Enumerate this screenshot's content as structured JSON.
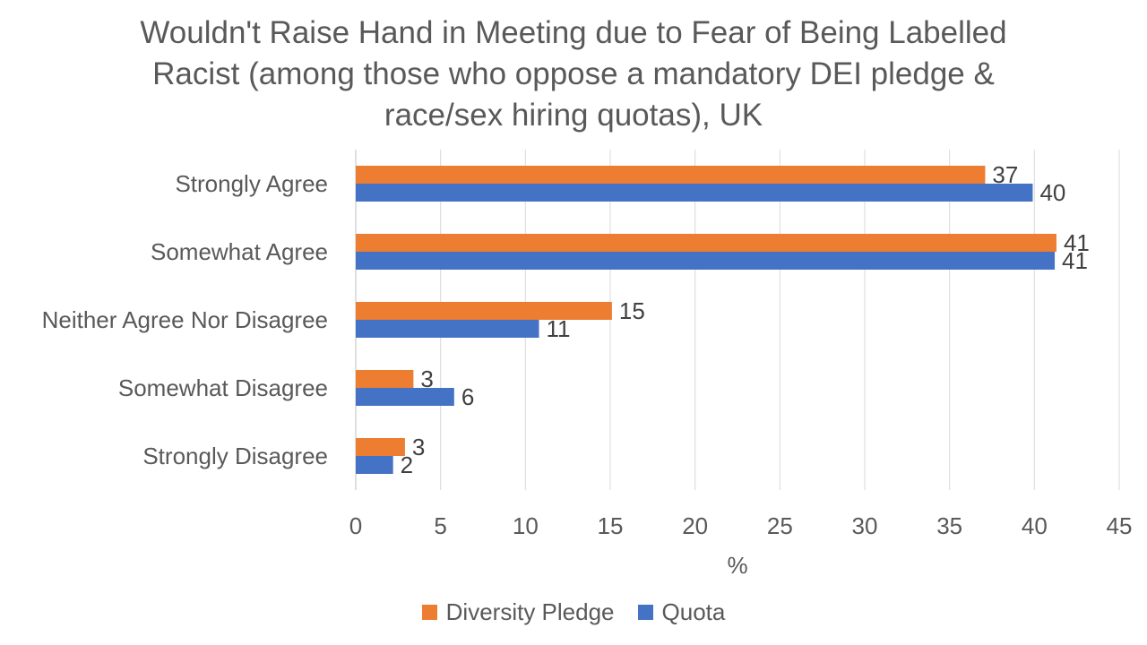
{
  "chart_data": {
    "type": "bar",
    "orientation": "horizontal",
    "title": "Wouldn't Raise Hand in Meeting due to Fear of Being Labelled Racist (among those who oppose a mandatory DEI pledge & race/sex hiring quotas), UK",
    "title_lines": [
      "Wouldn't Raise Hand in Meeting due to Fear of Being Labelled",
      "Racist (among those who oppose a mandatory DEI pledge &",
      "race/sex hiring quotas), UK"
    ],
    "categories": [
      "Strongly Agree",
      "Somewhat Agree",
      "Neither Agree Nor Disagree",
      "Somewhat Disagree",
      "Strongly Disagree"
    ],
    "series": [
      {
        "name": "Diversity Pledge",
        "color": "#ED7D31",
        "values": [
          37,
          41,
          15,
          3,
          3
        ],
        "plot_values": [
          37.1,
          41.3,
          15.1,
          3.4,
          2.9
        ]
      },
      {
        "name": "Quota",
        "color": "#4472C4",
        "values": [
          40,
          41,
          11,
          6,
          2
        ],
        "plot_values": [
          39.9,
          41.2,
          10.8,
          5.8,
          2.2
        ]
      }
    ],
    "xlabel": "%",
    "ylabel": "",
    "xlim": [
      0,
      45
    ],
    "xticks": [
      0,
      5,
      10,
      15,
      20,
      25,
      30,
      35,
      40,
      45
    ],
    "grid": true,
    "legend": "bottom"
  }
}
